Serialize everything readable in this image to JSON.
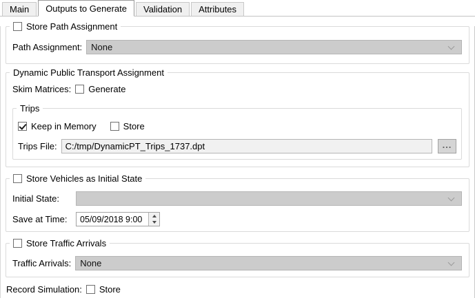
{
  "tabs": [
    {
      "label": "Main",
      "active": false
    },
    {
      "label": "Outputs to Generate",
      "active": true
    },
    {
      "label": "Validation",
      "active": false
    },
    {
      "label": "Attributes",
      "active": false
    }
  ],
  "store_path_assignment": {
    "title": "Store Path Assignment",
    "checked": false,
    "path_assignment_label": "Path Assignment:",
    "path_assignment_value": "None"
  },
  "dynamic_pt": {
    "title": "Dynamic Public Transport Assignment",
    "skim_matrices_label": "Skim Matrices:",
    "generate_label": "Generate",
    "generate_checked": false,
    "trips": {
      "title": "Trips",
      "keep_in_memory_label": "Keep in Memory",
      "keep_in_memory_checked": true,
      "store_label": "Store",
      "store_checked": false,
      "trips_file_label": "Trips File:",
      "trips_file_value": "C:/tmp/DynamicPT_Trips_1737.dpt",
      "browse_label": "..."
    }
  },
  "store_vehicles": {
    "title": "Store Vehicles as Initial State",
    "checked": false,
    "initial_state_label": "Initial State:",
    "initial_state_value": "",
    "save_at_time_label": "Save at Time:",
    "save_at_time_value": "05/09/2018 9:00"
  },
  "store_traffic_arrivals": {
    "title": "Store Traffic Arrivals",
    "checked": false,
    "traffic_arrivals_label": "Traffic Arrivals:",
    "traffic_arrivals_value": "None"
  },
  "record_simulation": {
    "label": "Record Simulation:",
    "store_label": "Store",
    "checked": false
  },
  "colors": {
    "disabled_field_bg": "#cccccc",
    "readonly_field_bg": "#f1f1f1",
    "group_border": "#dadada",
    "active_tab_border": "#999999"
  }
}
